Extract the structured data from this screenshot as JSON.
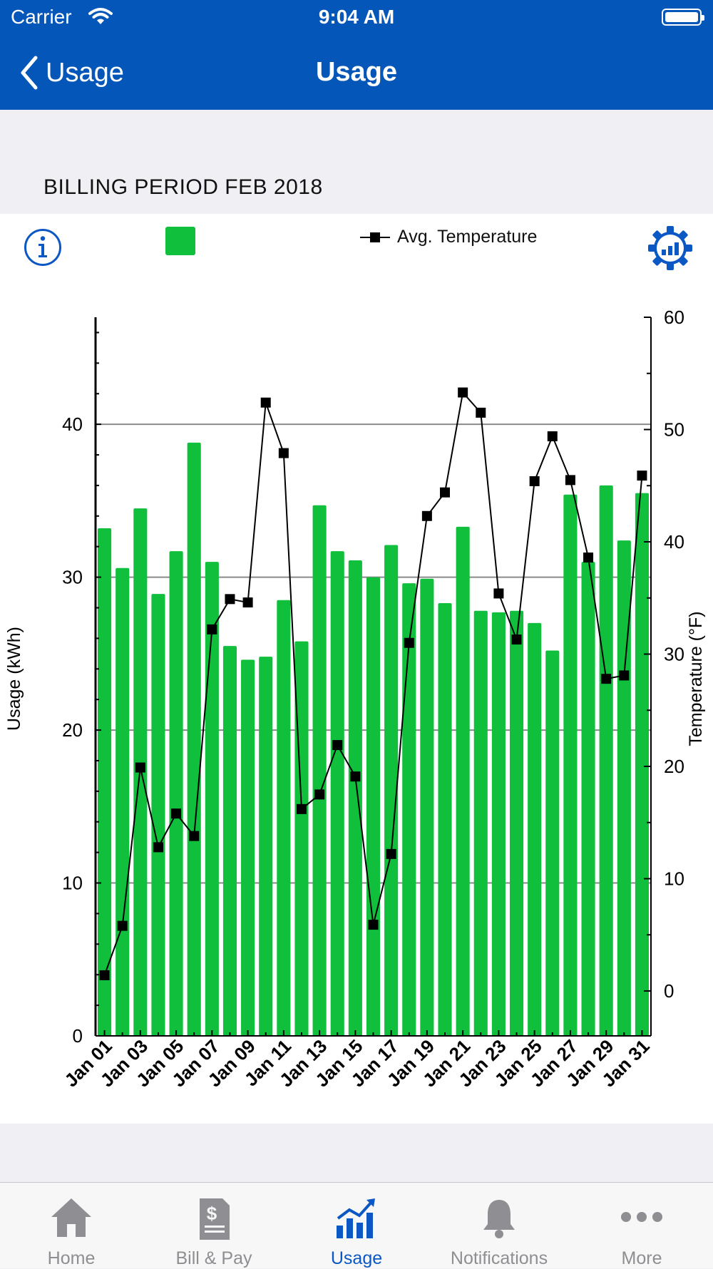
{
  "status_bar": {
    "carrier": "Carrier",
    "time": "9:04 AM"
  },
  "nav": {
    "back_label": "Usage",
    "title": "Usage"
  },
  "period_title": "BILLING PERIOD FEB 2018",
  "legend": {
    "temperature_label": "Avg. Temperature"
  },
  "colors": {
    "brand": "#0556b9",
    "bar": "#10bf3b",
    "tab_active": "#0b57c4",
    "tab_inactive": "#8e8e93"
  },
  "tabs": [
    {
      "label": "Home",
      "icon": "house-icon",
      "active": false
    },
    {
      "label": "Bill & Pay",
      "icon": "bill-icon",
      "active": false
    },
    {
      "label": "Usage",
      "icon": "usage-chart-icon",
      "active": true
    },
    {
      "label": "Notifications",
      "icon": "bell-icon",
      "active": false
    },
    {
      "label": "More",
      "icon": "more-dots-icon",
      "active": false
    }
  ],
  "chart_data": {
    "type": "bar",
    "xlabel": "",
    "ylabel": "Usage (kWh)",
    "y2label": "Temperature (°F)",
    "ylim": [
      0,
      47
    ],
    "y2lim": [
      -4,
      60
    ],
    "yticks": [
      0,
      10,
      20,
      30,
      40
    ],
    "y2ticks": [
      0,
      10,
      20,
      30,
      40,
      50,
      60
    ],
    "grid": true,
    "categories": [
      "Jan 01",
      "Jan 02",
      "Jan 03",
      "Jan 04",
      "Jan 05",
      "Jan 06",
      "Jan 07",
      "Jan 08",
      "Jan 09",
      "Jan 10",
      "Jan 11",
      "Jan 12",
      "Jan 13",
      "Jan 14",
      "Jan 15",
      "Jan 16",
      "Jan 17",
      "Jan 18",
      "Jan 19",
      "Jan 20",
      "Jan 21",
      "Jan 22",
      "Jan 23",
      "Jan 24",
      "Jan 25",
      "Jan 26",
      "Jan 27",
      "Jan 28",
      "Jan 29",
      "Jan 30",
      "Jan 31"
    ],
    "tick_labels": [
      "Jan 01",
      "Jan 03",
      "Jan 05",
      "Jan 07",
      "Jan 09",
      "Jan 11",
      "Jan 13",
      "Jan 15",
      "Jan 17",
      "Jan 19",
      "Jan 21",
      "Jan 23",
      "Jan 25",
      "Jan 27",
      "Jan 29",
      "Jan 31"
    ],
    "series": [
      {
        "type": "bar",
        "axis": "left",
        "values": [
          33.2,
          30.6,
          34.5,
          28.9,
          31.7,
          38.8,
          31.0,
          25.5,
          24.6,
          24.8,
          28.5,
          25.8,
          34.7,
          31.7,
          31.1,
          30.0,
          32.1,
          29.6,
          29.9,
          28.3,
          33.3,
          27.8,
          27.7,
          27.8,
          27.0,
          25.2,
          35.4,
          31.0,
          36.0,
          32.4,
          35.5
        ]
      },
      {
        "type": "line",
        "axis": "right",
        "name": "Avg. Temperature",
        "values": [
          1.4,
          5.8,
          19.9,
          12.8,
          15.8,
          13.8,
          32.2,
          34.9,
          34.6,
          52.4,
          47.9,
          16.2,
          17.5,
          21.9,
          19.1,
          5.9,
          12.2,
          31.0,
          42.3,
          44.4,
          53.3,
          51.5,
          35.4,
          31.3,
          45.4,
          49.4,
          45.5,
          38.6,
          27.8,
          28.1,
          45.9
        ]
      }
    ]
  }
}
